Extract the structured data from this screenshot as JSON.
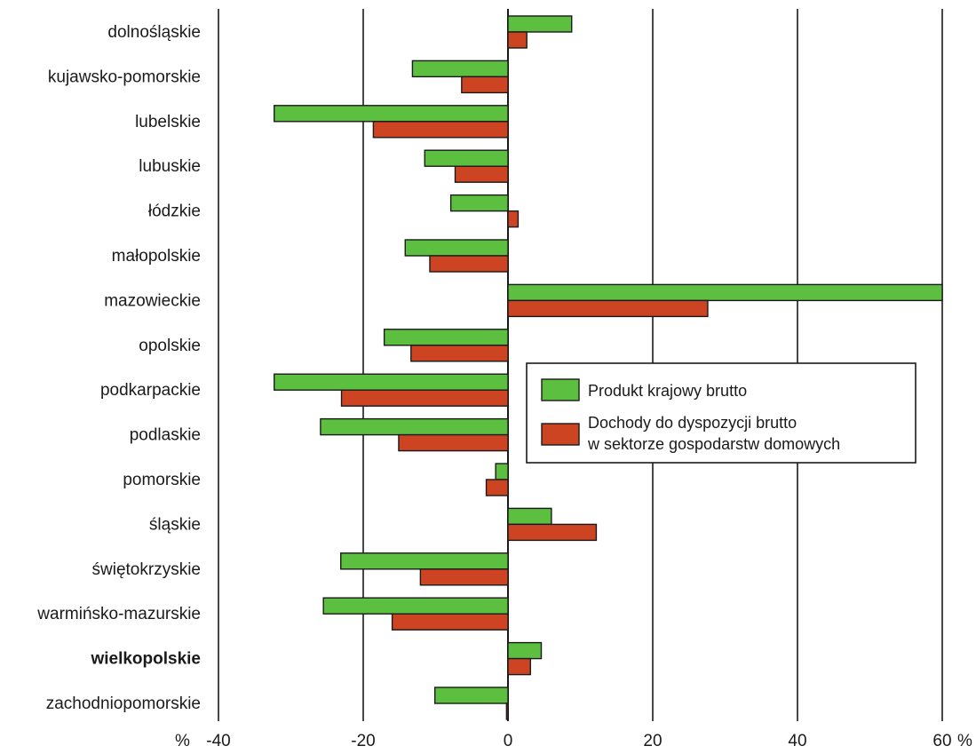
{
  "chart_data": {
    "type": "bar",
    "orientation": "horizontal",
    "categories": [
      "dolnośląskie",
      "kujawsko-pomorskie",
      "lubelskie",
      "lubuskie",
      "łódzkie",
      "małopolskie",
      "mazowieckie",
      "opolskie",
      "podkarpackie",
      "podlaskie",
      "pomorskie",
      "śląskie",
      "świętokrzyskie",
      "warmińsko-mazurskie",
      "wielkopolskie",
      "zachodniopomorskie"
    ],
    "highlighted_category": "wielkopolskie",
    "series": [
      {
        "name": "Produkt krajowy brutto",
        "color": "#5cbf3f",
        "values": [
          8.8,
          -13.2,
          -32.3,
          -11.5,
          -7.9,
          -14.2,
          60.0,
          -17.1,
          -32.3,
          -25.9,
          -1.7,
          6.0,
          -23.1,
          -25.5,
          4.6,
          -10.1
        ]
      },
      {
        "name": "Dochody do dyspozycji brutto w sektorze gospodarstw domowych",
        "legend_lines": [
          "Dochody do dyspozycji brutto",
          "w sektorze gospodarstw domowych"
        ],
        "color": "#cc4422",
        "values": [
          2.6,
          -6.4,
          -18.6,
          -7.3,
          1.4,
          -10.8,
          27.6,
          -13.4,
          -23.0,
          -15.1,
          -3.0,
          12.2,
          -12.1,
          -16.0,
          3.1,
          -0.2
        ]
      }
    ],
    "xlim": [
      -40,
      60
    ],
    "x_ticks": [
      -40,
      -20,
      0,
      20,
      40,
      60
    ],
    "x_tick_labels": [
      "-40",
      "-20",
      "0",
      "20",
      "40",
      "60"
    ],
    "x_unit_left": "%",
    "x_unit_right": "%",
    "grid": "vertical",
    "legend_position": "right-center"
  }
}
